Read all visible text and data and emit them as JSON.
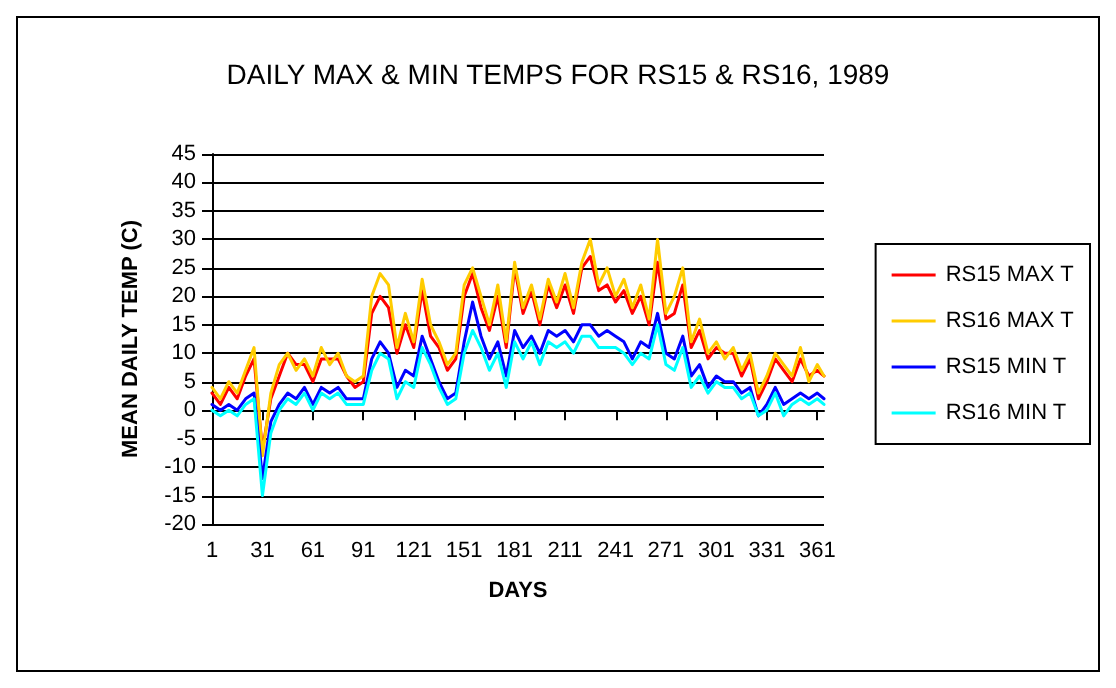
{
  "chart_data": {
    "type": "line",
    "title": "DAILY MAX & MIN TEMPS FOR RS15 & RS16, 1989",
    "xlabel": "DAYS",
    "ylabel": "MEAN DAILY TEMP (C)",
    "x": [
      1,
      6,
      11,
      16,
      21,
      26,
      31,
      36,
      41,
      46,
      51,
      56,
      61,
      66,
      71,
      76,
      81,
      86,
      91,
      96,
      101,
      106,
      111,
      116,
      121,
      126,
      131,
      136,
      141,
      146,
      151,
      156,
      161,
      166,
      171,
      176,
      181,
      186,
      191,
      196,
      201,
      206,
      211,
      216,
      221,
      226,
      231,
      236,
      241,
      246,
      251,
      256,
      261,
      266,
      271,
      276,
      281,
      286,
      291,
      296,
      301,
      306,
      311,
      316,
      321,
      326,
      331,
      336,
      341,
      346,
      351,
      356,
      361,
      365
    ],
    "series": [
      {
        "name": "RS15 MAX T",
        "color": "#ff0000",
        "values": [
          3,
          1,
          4,
          2,
          6,
          9,
          -7,
          2,
          6,
          10,
          8,
          8,
          5,
          9,
          9,
          9,
          6,
          4,
          5,
          17,
          20,
          18,
          10,
          15,
          11,
          21,
          13,
          11,
          7,
          9,
          20,
          24,
          18,
          14,
          20,
          11,
          25,
          17,
          21,
          15,
          22,
          18,
          22,
          17,
          25,
          27,
          21,
          22,
          19,
          21,
          17,
          20,
          15,
          26,
          16,
          17,
          22,
          11,
          14,
          9,
          11,
          10,
          10,
          6,
          9,
          2,
          5,
          9,
          7,
          5,
          9,
          6,
          7,
          6
        ]
      },
      {
        "name": "RS16 MAX T",
        "color": "#ffcc00",
        "values": [
          4,
          2,
          5,
          3,
          7,
          11,
          -8,
          3,
          8,
          10,
          7,
          9,
          6,
          11,
          8,
          10,
          6,
          5,
          6,
          20,
          24,
          22,
          11,
          17,
          12,
          23,
          15,
          12,
          8,
          10,
          22,
          25,
          20,
          15,
          22,
          12,
          26,
          18,
          22,
          16,
          23,
          19,
          24,
          18,
          26,
          30,
          22,
          25,
          20,
          23,
          18,
          22,
          16,
          30,
          17,
          20,
          25,
          12,
          16,
          10,
          12,
          9,
          11,
          7,
          10,
          3,
          6,
          10,
          8,
          6,
          11,
          5,
          8,
          6
        ]
      },
      {
        "name": "RS15 MIN T",
        "color": "#0000ff",
        "values": [
          1,
          0,
          1,
          0,
          2,
          3,
          -12,
          -2,
          1,
          3,
          2,
          4,
          1,
          4,
          3,
          4,
          2,
          2,
          2,
          9,
          12,
          10,
          4,
          7,
          6,
          13,
          9,
          5,
          2,
          3,
          12,
          19,
          13,
          9,
          12,
          6,
          14,
          11,
          13,
          10,
          14,
          13,
          14,
          12,
          15,
          15,
          13,
          14,
          13,
          12,
          9,
          12,
          11,
          17,
          10,
          9,
          13,
          6,
          8,
          4,
          6,
          5,
          5,
          3,
          4,
          -1,
          1,
          4,
          1,
          2,
          3,
          2,
          3,
          2
        ]
      },
      {
        "name": "RS16 MIN T",
        "color": "#00ffff",
        "values": [
          0,
          -1,
          0,
          -1,
          1,
          2,
          -15,
          -4,
          0,
          2,
          1,
          3,
          0,
          3,
          2,
          3,
          1,
          1,
          1,
          7,
          10,
          9,
          2,
          5,
          4,
          11,
          8,
          4,
          1,
          2,
          10,
          14,
          11,
          7,
          10,
          4,
          12,
          9,
          12,
          8,
          12,
          11,
          12,
          10,
          13,
          13,
          11,
          11,
          11,
          10,
          8,
          10,
          9,
          15,
          8,
          7,
          11,
          4,
          6,
          3,
          5,
          4,
          4,
          2,
          3,
          -1,
          0,
          3,
          -1,
          1,
          2,
          1,
          2,
          1
        ]
      }
    ],
    "xlim": [
      1,
      365
    ],
    "xticks": [
      1,
      31,
      61,
      91,
      121,
      151,
      181,
      211,
      241,
      271,
      301,
      331,
      361
    ],
    "ylim": [
      -20,
      45
    ],
    "yticks": [
      -20,
      -15,
      -10,
      -5,
      0,
      5,
      10,
      15,
      20,
      25,
      30,
      35,
      40,
      45
    ],
    "grid": "y",
    "legend": "right",
    "marker": "none",
    "line_style": "solid"
  }
}
